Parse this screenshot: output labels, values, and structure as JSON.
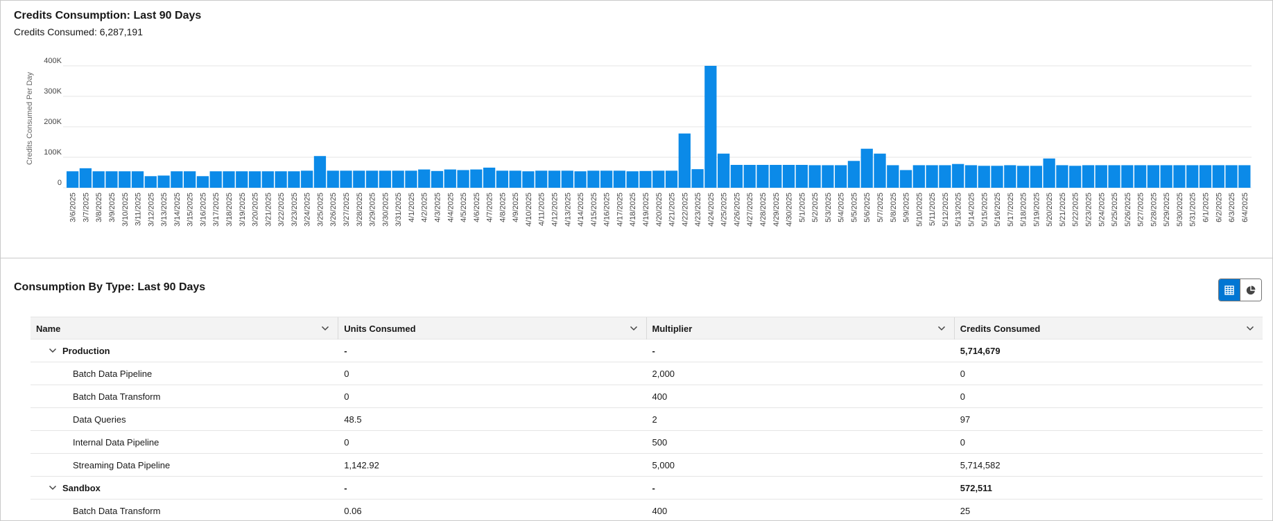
{
  "credits_card": {
    "title": "Credits Consumption: Last 90 Days",
    "summary_label": "Credits Consumed: ",
    "summary_value": "6,287,191"
  },
  "chart_data": {
    "type": "bar",
    "title": "",
    "xlabel": "",
    "ylabel": "Credits Consumed Per Day",
    "ylim": [
      0,
      400000
    ],
    "y_ticks": [
      {
        "value": 0,
        "label": "0"
      },
      {
        "value": 100000,
        "label": "100K"
      },
      {
        "value": 200000,
        "label": "200K"
      },
      {
        "value": 300000,
        "label": "300K"
      },
      {
        "value": 400000,
        "label": "400K"
      }
    ],
    "grid": true,
    "bar_color": "#0b8ae8",
    "categories": [
      "3/6/2025",
      "3/7/2025",
      "3/8/2025",
      "3/9/2025",
      "3/10/2025",
      "3/11/2025",
      "3/12/2025",
      "3/13/2025",
      "3/14/2025",
      "3/15/2025",
      "3/16/2025",
      "3/17/2025",
      "3/18/2025",
      "3/19/2025",
      "3/20/2025",
      "3/21/2025",
      "3/22/2025",
      "3/23/2025",
      "3/24/2025",
      "3/25/2025",
      "3/26/2025",
      "3/27/2025",
      "3/28/2025",
      "3/29/2025",
      "3/30/2025",
      "3/31/2025",
      "4/1/2025",
      "4/2/2025",
      "4/3/2025",
      "4/4/2025",
      "4/5/2025",
      "4/6/2025",
      "4/7/2025",
      "4/8/2025",
      "4/9/2025",
      "4/10/2025",
      "4/11/2025",
      "4/12/2025",
      "4/13/2025",
      "4/14/2025",
      "4/15/2025",
      "4/16/2025",
      "4/17/2025",
      "4/18/2025",
      "4/19/2025",
      "4/20/2025",
      "4/21/2025",
      "4/22/2025",
      "4/23/2025",
      "4/24/2025",
      "4/25/2025",
      "4/26/2025",
      "4/27/2025",
      "4/28/2025",
      "4/29/2025",
      "4/30/2025",
      "5/1/2025",
      "5/2/2025",
      "5/3/2025",
      "5/4/2025",
      "5/5/2025",
      "5/6/2025",
      "5/7/2025",
      "5/8/2025",
      "5/9/2025",
      "5/10/2025",
      "5/11/2025",
      "5/12/2025",
      "5/13/2025",
      "5/14/2025",
      "5/15/2025",
      "5/16/2025",
      "5/17/2025",
      "5/18/2025",
      "5/19/2025",
      "5/20/2025",
      "5/21/2025",
      "5/22/2025",
      "5/23/2025",
      "5/24/2025",
      "5/25/2025",
      "5/26/2025",
      "5/27/2025",
      "5/28/2025",
      "5/29/2025",
      "5/30/2025",
      "5/31/2025",
      "6/1/2025",
      "6/2/2025",
      "6/3/2025",
      "6/4/2025"
    ],
    "values": [
      54000,
      64000,
      54000,
      54000,
      54000,
      54000,
      38000,
      40000,
      54000,
      54000,
      38000,
      54000,
      54000,
      54000,
      54000,
      54000,
      54000,
      54000,
      56000,
      104000,
      56000,
      56000,
      56000,
      56000,
      56000,
      56000,
      56000,
      60000,
      55000,
      60000,
      58000,
      60000,
      66000,
      56000,
      56000,
      54000,
      56000,
      56000,
      56000,
      54000,
      56000,
      56000,
      56000,
      54000,
      55000,
      56000,
      56000,
      178000,
      61000,
      400000,
      112000,
      75000,
      75000,
      75000,
      75000,
      75000,
      75000,
      74000,
      74000,
      74000,
      88000,
      128000,
      112000,
      74000,
      58000,
      74000,
      74000,
      74000,
      78000,
      74000,
      72000,
      72000,
      74000,
      72000,
      72000,
      96000,
      74000,
      72000,
      74000,
      74000,
      74000,
      74000,
      74000,
      74000,
      74000,
      74000,
      74000,
      74000,
      74000,
      74000,
      74000
    ]
  },
  "type_card": {
    "title": "Consumption By Type: Last 90 Days",
    "view_toggle": {
      "active_icon": "table-icon",
      "inactive_icon": "pie-chart-icon",
      "active_color": "#0176d3"
    }
  },
  "table": {
    "columns": [
      "Name",
      "Units Consumed",
      "Multiplier",
      "Credits Consumed"
    ],
    "groups": [
      {
        "name": "Production",
        "units": "-",
        "multiplier": "-",
        "credits": "5,714,679",
        "rows": [
          {
            "name": "Batch Data Pipeline",
            "units": "0",
            "multiplier": "2,000",
            "credits": "0"
          },
          {
            "name": "Batch Data Transform",
            "units": "0",
            "multiplier": "400",
            "credits": "0"
          },
          {
            "name": "Data Queries",
            "units": "48.5",
            "multiplier": "2",
            "credits": "97"
          },
          {
            "name": "Internal Data Pipeline",
            "units": "0",
            "multiplier": "500",
            "credits": "0"
          },
          {
            "name": "Streaming Data Pipeline",
            "units": "1,142.92",
            "multiplier": "5,000",
            "credits": "5,714,582"
          }
        ]
      },
      {
        "name": "Sandbox",
        "units": "-",
        "multiplier": "-",
        "credits": "572,511",
        "rows": [
          {
            "name": "Batch Data Transform",
            "units": "0.06",
            "multiplier": "400",
            "credits": "25"
          }
        ]
      }
    ]
  }
}
